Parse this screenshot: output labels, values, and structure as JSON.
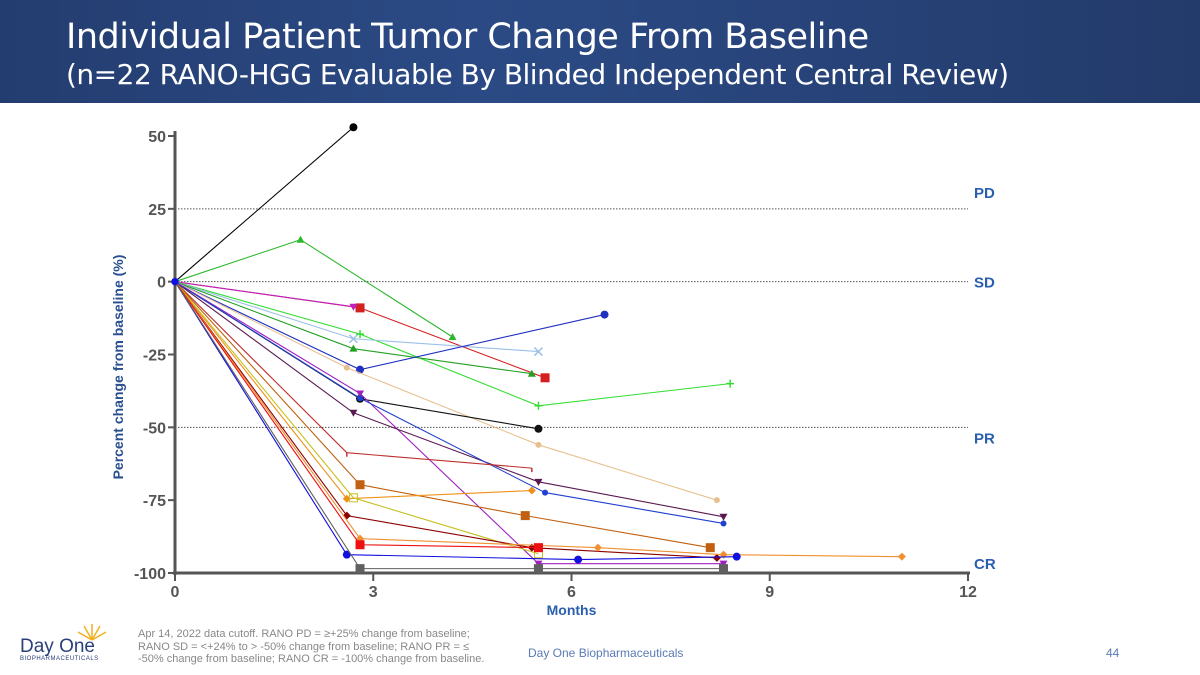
{
  "header": {
    "title": "Individual Patient Tumor Change From Baseline",
    "subtitle": "(n=22 RANO-HGG Evaluable By Blinded Independent Central Review)"
  },
  "footer": {
    "footnote": "Apr 14, 2022 data cutoff. RANO PD = ≥+25% change from baseline; RANO SD = <+24% to > -50% change from baseline; RANO PR = ≤ -50% change from baseline; RANO CR = -100% change from baseline.",
    "company": "Day One Biopharmaceuticals",
    "page": "44",
    "logo_name": "Day One",
    "logo_sub": "BIOPHARMACEUTICALS"
  },
  "chart_data": {
    "type": "line",
    "title": "",
    "xlabel": "Months",
    "ylabel": "Percent change from baseline (%)",
    "xlim": [
      0,
      12
    ],
    "ylim": [
      -100,
      50
    ],
    "xticks": [
      0,
      3,
      6,
      9,
      12
    ],
    "yticks": [
      50,
      25,
      0,
      -25,
      -50,
      -75,
      -100
    ],
    "reference_lines": [
      {
        "y": 25,
        "label": "PD"
      },
      {
        "y": 0,
        "label": "SD"
      },
      {
        "y": -50,
        "label": "PR"
      },
      {
        "y": -100,
        "label": "CR"
      }
    ],
    "series": [
      {
        "color": "#000000",
        "marker": "circle",
        "points": [
          [
            0,
            0
          ],
          [
            2.7,
            53
          ]
        ]
      },
      {
        "color": "#2eb82e",
        "marker": "triangle",
        "points": [
          [
            0,
            0
          ],
          [
            1.9,
            14.4
          ],
          [
            4.2,
            -19
          ]
        ]
      },
      {
        "color": "#d42020",
        "marker": "square",
        "points": [
          [
            0,
            0
          ],
          [
            2.8,
            -9
          ],
          [
            5.6,
            -33
          ]
        ]
      },
      {
        "color": "#c020c0",
        "marker": "down-triangle",
        "points": [
          [
            0,
            0
          ],
          [
            2.7,
            -8.6
          ]
        ]
      },
      {
        "color": "#33dd33",
        "marker": "plus",
        "points": [
          [
            0,
            0
          ],
          [
            2.8,
            -18
          ],
          [
            5.5,
            -42.6
          ],
          [
            8.4,
            -35
          ]
        ]
      },
      {
        "color": "#9cc0e8",
        "marker": "x",
        "points": [
          [
            0,
            0
          ],
          [
            2.7,
            -19.6
          ],
          [
            5.5,
            -24
          ]
        ]
      },
      {
        "color": "#22a022",
        "marker": "triangle",
        "points": [
          [
            0,
            0
          ],
          [
            2.7,
            -23
          ],
          [
            5.4,
            -31.6
          ]
        ]
      },
      {
        "color": "#2030c0",
        "marker": "circle",
        "points": [
          [
            0,
            0
          ],
          [
            2.8,
            -30.2
          ],
          [
            6.5,
            -11.3
          ]
        ]
      },
      {
        "color": "#e8c090",
        "marker": "star",
        "points": [
          [
            0,
            0
          ],
          [
            2.6,
            -29.5
          ],
          [
            5.5,
            -56
          ],
          [
            8.2,
            -75
          ]
        ]
      },
      {
        "color": "#111111",
        "marker": "circle",
        "points": [
          [
            0,
            0
          ],
          [
            2.8,
            -40.2
          ],
          [
            5.5,
            -50.5
          ]
        ]
      },
      {
        "color": "#a020c0",
        "marker": "hourglass",
        "points": [
          [
            0,
            0
          ],
          [
            2.8,
            -38.4
          ],
          [
            5.5,
            -96.8
          ],
          [
            8.3,
            -96.8
          ]
        ]
      },
      {
        "color": "#5a1a50",
        "marker": "down-triangle",
        "points": [
          [
            0,
            0
          ],
          [
            2.7,
            -45
          ],
          [
            5.5,
            -68.7
          ],
          [
            8.3,
            -80.7
          ]
        ]
      },
      {
        "color": "#2040d0",
        "marker": "small-circle",
        "points": [
          [
            0,
            0
          ],
          [
            2.8,
            -40
          ],
          [
            5.6,
            -72.4
          ],
          [
            8.3,
            -83
          ]
        ]
      },
      {
        "color": "#c03030",
        "marker": "tick",
        "points": [
          [
            0,
            0
          ],
          [
            2.6,
            -58.7
          ],
          [
            5.4,
            -64
          ]
        ]
      },
      {
        "color": "#c06010",
        "marker": "square",
        "points": [
          [
            0,
            0
          ],
          [
            2.8,
            -69.7
          ],
          [
            5.3,
            -80.3
          ],
          [
            8.1,
            -91.3
          ]
        ]
      },
      {
        "color": "#f0901a",
        "marker": "diamond",
        "points": [
          [
            0,
            0
          ],
          [
            2.6,
            -74.5
          ],
          [
            5.4,
            -71.7
          ]
        ]
      },
      {
        "color": "#c8c020",
        "marker": "open-square",
        "points": [
          [
            0,
            0
          ],
          [
            2.7,
            -74.2
          ],
          [
            5.5,
            -93.4
          ]
        ]
      },
      {
        "color": "#8b0000",
        "marker": "diamond",
        "points": [
          [
            0,
            0
          ],
          [
            2.6,
            -80.3
          ],
          [
            5.4,
            -91.3
          ],
          [
            8.2,
            -94.8
          ]
        ]
      },
      {
        "color": "#f09030",
        "marker": "small-diamond",
        "points": [
          [
            0,
            0
          ],
          [
            2.8,
            -88.2
          ],
          [
            6.4,
            -91.3
          ],
          [
            8.3,
            -93.7
          ],
          [
            11,
            -94.4
          ]
        ]
      },
      {
        "color": "#ee1010",
        "marker": "square",
        "points": [
          [
            0,
            0
          ],
          [
            2.8,
            -90.3
          ],
          [
            5.5,
            -91.3
          ]
        ]
      },
      {
        "color": "#1010e0",
        "marker": "circle",
        "points": [
          [
            0,
            0
          ],
          [
            2.6,
            -93.7
          ],
          [
            6.1,
            -95.4
          ],
          [
            8.5,
            -94.4
          ]
        ]
      },
      {
        "color": "#606060",
        "marker": "square",
        "points": [
          [
            0,
            0
          ],
          [
            2.8,
            -98.5
          ],
          [
            5.5,
            -98.5
          ],
          [
            8.3,
            -98.5
          ]
        ]
      }
    ]
  }
}
